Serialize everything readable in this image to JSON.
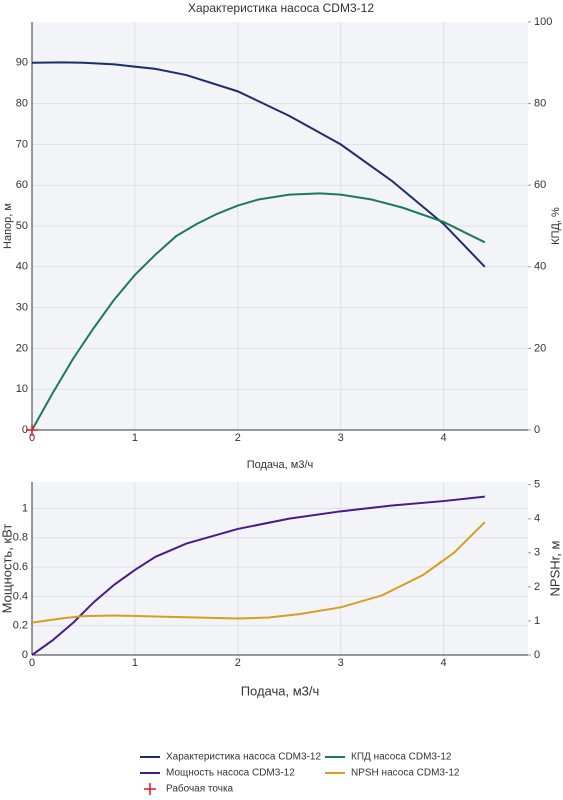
{
  "chart_data": [
    {
      "type": "line",
      "title": "Характеристика насоса CDM3-12",
      "x_label": "Подача, м3/ч",
      "y_label": "Напор, м",
      "y2_label": "КПД, %",
      "xlim": [
        0,
        4.82
      ],
      "xticks": [
        0,
        1,
        2,
        3,
        4
      ],
      "ylim": [
        0,
        100
      ],
      "yticks": [
        0,
        10,
        20,
        30,
        40,
        50,
        60,
        70,
        80,
        90
      ],
      "y2lim": [
        0,
        100
      ],
      "y2ticks": [
        0,
        20,
        40,
        60,
        80,
        100
      ],
      "grid": true,
      "series": [
        {
          "name": "Характеристика насоса CDM3-12",
          "color": "#1f2d6b",
          "axis": "y",
          "x": [
            0,
            0.3,
            0.5,
            0.8,
            1.2,
            1.5,
            2,
            2.5,
            3,
            3.5,
            4,
            4.4
          ],
          "values": [
            90,
            90.1,
            90,
            89.6,
            88.5,
            87,
            83,
            77,
            70,
            61,
            50.5,
            40
          ]
        },
        {
          "name": "КПД насоса CDM3-12",
          "color": "#1b7a5c",
          "axis": "y2",
          "x": [
            0,
            0.2,
            0.4,
            0.6,
            0.8,
            1,
            1.2,
            1.4,
            1.6,
            1.8,
            2,
            2.2,
            2.5,
            2.8,
            3,
            3.3,
            3.6,
            4,
            4.4
          ],
          "values": [
            0,
            9,
            17.5,
            25,
            32,
            38,
            43,
            47.5,
            50.5,
            53,
            55,
            56.5,
            57.7,
            58,
            57.7,
            56.5,
            54.5,
            51,
            46
          ]
        },
        {
          "name": "Рабочая точка",
          "color": "#e8141c",
          "axis": "y",
          "mode": "markers",
          "x": [
            0
          ],
          "values": [
            0
          ]
        }
      ]
    },
    {
      "type": "line",
      "x_label": "Подача, м3/ч",
      "y_label": "Мощность, кВт",
      "y2_label": "NPSHr, м",
      "xlim": [
        0,
        4.82
      ],
      "xticks": [
        0,
        1,
        2,
        3,
        4
      ],
      "ylim": [
        0,
        1.18
      ],
      "yticks": [
        0,
        0.2,
        0.4,
        0.6,
        0.8,
        1
      ],
      "y2lim": [
        0,
        5.08
      ],
      "y2ticks": [
        0,
        1,
        2,
        3,
        4,
        5
      ],
      "grid": true,
      "series": [
        {
          "name": "Мощность насоса CDM3-12",
          "color": "#4a1a88",
          "axis": "y",
          "x": [
            0,
            0.2,
            0.4,
            0.6,
            0.8,
            1,
            1.2,
            1.5,
            2,
            2.5,
            3,
            3.5,
            4,
            4.4
          ],
          "values": [
            0,
            0.1,
            0.22,
            0.36,
            0.48,
            0.58,
            0.67,
            0.76,
            0.86,
            0.93,
            0.98,
            1.02,
            1.05,
            1.08
          ]
        },
        {
          "name": "NPSH насоса CDM3-12",
          "color": "#d4a020",
          "axis": "y2",
          "x": [
            0,
            0.3,
            0.5,
            0.8,
            1.2,
            1.6,
            2,
            2.3,
            2.6,
            3,
            3.4,
            3.8,
            4.1,
            4.4
          ],
          "values": [
            0.95,
            1.08,
            1.14,
            1.16,
            1.13,
            1.1,
            1.07,
            1.1,
            1.2,
            1.4,
            1.75,
            2.35,
            3,
            3.9
          ]
        }
      ]
    }
  ]
}
